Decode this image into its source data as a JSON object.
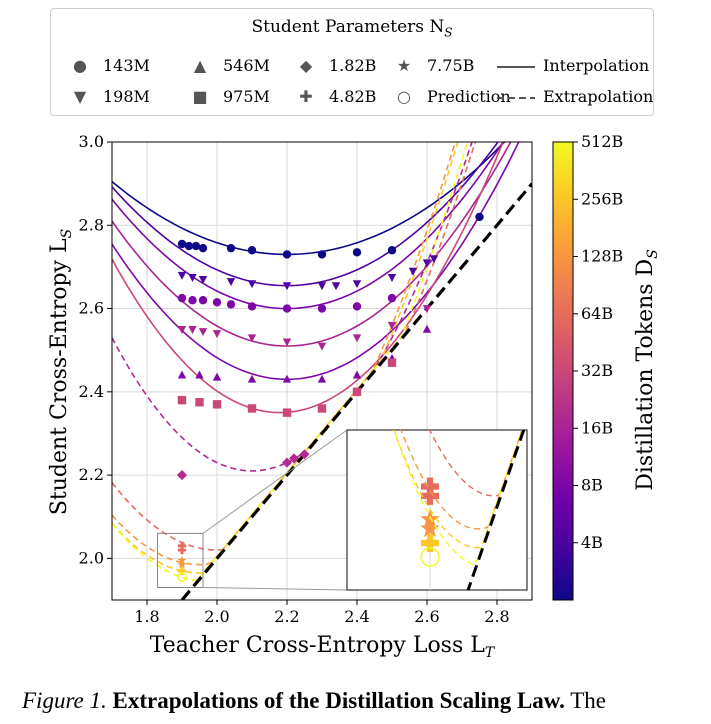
{
  "legend": {
    "title": "Student Parameters N",
    "title_sub": "S",
    "items": [
      {
        "symbol": "●",
        "label": "143M",
        "name": "marker-circle-icon"
      },
      {
        "symbol": "▲",
        "label": "546M",
        "name": "marker-triangle-up-icon"
      },
      {
        "symbol": "◆",
        "label": "1.82B",
        "name": "marker-diamond-icon"
      },
      {
        "symbol": "★",
        "label": "7.75B",
        "name": "marker-star-icon"
      },
      {
        "symbol": "▼",
        "label": "198M",
        "name": "marker-triangle-down-icon"
      },
      {
        "symbol": "■",
        "label": "975M",
        "name": "marker-square-icon"
      },
      {
        "symbol": "✚",
        "label": "4.82B",
        "name": "marker-plus-icon"
      },
      {
        "symbol": "○",
        "label": "Prediction",
        "name": "marker-open-circle-icon"
      }
    ],
    "line_items": [
      {
        "style": "solid",
        "label": "Interpolation"
      },
      {
        "style": "dashed",
        "label": "Extrapolation"
      }
    ]
  },
  "caption": {
    "label": "Figure 1.",
    "bold": "Extrapolations of the Distillation Scaling Law.",
    "rest": "The"
  },
  "colors": {
    "cmap": [
      "#0d0887",
      "#46039f",
      "#7201a8",
      "#9c179e",
      "#bd3786",
      "#d8576b",
      "#ed7953",
      "#fb9f3a",
      "#fdca26",
      "#f0f921"
    ],
    "identity_line": "#000000",
    "grid": "#d9d9d9"
  },
  "chart_data": {
    "type": "scatter",
    "title": "",
    "xlabel": "Teacher Cross-Entropy Loss L",
    "xlabel_sub": "T",
    "ylabel": "Student Cross-Entropy L",
    "ylabel_sub": "S",
    "xlim": [
      1.7,
      2.9
    ],
    "ylim": [
      1.9,
      3.0
    ],
    "xticks": [
      1.8,
      2.0,
      2.2,
      2.4,
      2.6,
      2.8
    ],
    "xtick_labels": [
      "1.8",
      "2.0",
      "2.2",
      "2.4",
      "2.6",
      "2.8"
    ],
    "yticks": [
      2.0,
      2.2,
      2.4,
      2.6,
      2.8,
      3.0
    ],
    "ytick_labels": [
      "2.0",
      "2.2",
      "2.4",
      "2.6",
      "2.8",
      "3.0"
    ],
    "grid": true,
    "identity_line": {
      "from": 1.9,
      "to": 2.9,
      "style": "dashed"
    },
    "colorbar": {
      "label": "Distillation Tokens D",
      "label_sub": "S",
      "scale": "log",
      "range": [
        "2B",
        "512B"
      ],
      "ticks": [
        "4B",
        "8B",
        "16B",
        "32B",
        "64B",
        "128B",
        "256B",
        "512B"
      ]
    },
    "series": [
      {
        "name": "143M, D_S≈2B",
        "marker": "circle",
        "c": 0.0,
        "fit": "interpolation",
        "min_x": 2.2,
        "min_y": 2.73,
        "curv": 0.7,
        "x": [
          1.9,
          1.92,
          1.94,
          1.96,
          2.04,
          2.1,
          2.2,
          2.3,
          2.4,
          2.5,
          2.75
        ],
        "y": [
          2.755,
          2.75,
          2.75,
          2.745,
          2.745,
          2.74,
          2.73,
          2.73,
          2.735,
          2.74,
          2.82
        ]
      },
      {
        "name": "198M, D_S≈4B",
        "marker": "triangle-down",
        "c": 0.13,
        "fit": "interpolation",
        "min_x": 2.2,
        "min_y": 2.655,
        "curv": 0.95,
        "x": [
          1.9,
          1.93,
          1.96,
          2.04,
          2.1,
          2.2,
          2.3,
          2.34,
          2.4,
          2.5,
          2.56,
          2.6,
          2.62
        ],
        "y": [
          2.68,
          2.675,
          2.67,
          2.665,
          2.66,
          2.655,
          2.655,
          2.655,
          2.66,
          2.675,
          2.69,
          2.71,
          2.72
        ]
      },
      {
        "name": "143M, D_S≈8B",
        "marker": "circle",
        "c": 0.25,
        "fit": "interpolation",
        "min_x": 2.2,
        "min_y": 2.6,
        "curv": 1.05,
        "x": [
          1.9,
          1.93,
          1.96,
          2.0,
          2.04,
          2.1,
          2.2,
          2.3,
          2.4,
          2.5
        ],
        "y": [
          2.625,
          2.62,
          2.62,
          2.615,
          2.61,
          2.605,
          2.6,
          2.6,
          2.605,
          2.625
        ]
      },
      {
        "name": "198M, D_S≈16B",
        "marker": "triangle-down",
        "c": 0.38,
        "fit": "interpolation",
        "min_x": 2.2,
        "min_y": 2.51,
        "curv": 1.2,
        "x": [
          1.9,
          1.93,
          1.96,
          2.0,
          2.1,
          2.2,
          2.3,
          2.4,
          2.5,
          2.6
        ],
        "y": [
          2.55,
          2.55,
          2.545,
          2.54,
          2.53,
          2.52,
          2.51,
          2.53,
          2.56,
          2.6
        ]
      },
      {
        "name": "546M, D_S≈8B",
        "marker": "triangle-up",
        "c": 0.26,
        "fit": "interpolation",
        "min_x": 2.2,
        "min_y": 2.43,
        "curv": 1.3,
        "x": [
          1.9,
          1.95,
          2.0,
          2.1,
          2.2,
          2.3,
          2.4,
          2.5,
          2.6
        ],
        "y": [
          2.44,
          2.44,
          2.435,
          2.43,
          2.43,
          2.43,
          2.44,
          2.48,
          2.55
        ]
      },
      {
        "name": "975M, D_S≈32B",
        "marker": "square",
        "c": 0.5,
        "fit": "interpolation",
        "min_x": 2.18,
        "min_y": 2.35,
        "curv": 1.6,
        "x": [
          1.9,
          1.95,
          2.0,
          2.1,
          2.2,
          2.3,
          2.4,
          2.5
        ],
        "y": [
          2.38,
          2.375,
          2.37,
          2.36,
          2.35,
          2.36,
          2.4,
          2.47
        ]
      },
      {
        "name": "1.82B, D_S≈16B",
        "marker": "diamond",
        "c": 0.4,
        "fit": "extrapolation",
        "min_x": 2.1,
        "min_y": 2.21,
        "curv": 2.0,
        "x": [
          1.9,
          2.2,
          2.22,
          2.25
        ],
        "y": [
          2.2,
          2.23,
          2.24,
          2.25
        ]
      },
      {
        "name": "4.82B, D_S≈64B",
        "marker": "plus",
        "c": 0.62,
        "fit": "extrapolation",
        "min_x": 2.0,
        "min_y": 2.02,
        "curv": 1.8,
        "x": [
          1.9,
          1.9
        ],
        "y": [
          2.03,
          2.02
        ]
      },
      {
        "name": "7.75B, D_S≈128B",
        "marker": "star",
        "c": 0.75,
        "fit": "extrapolation",
        "min_x": 1.95,
        "min_y": 1.985,
        "curv": 1.9,
        "x": [
          1.9,
          1.9
        ],
        "y": [
          1.995,
          1.985
        ]
      },
      {
        "name": "4.82B, D_S≈256B",
        "marker": "plus",
        "c": 0.88,
        "fit": "extrapolation",
        "min_x": 1.95,
        "min_y": 1.965,
        "curv": 1.9,
        "x": [
          1.9
        ],
        "y": [
          1.97
        ]
      },
      {
        "name": "7.75B, D_S≈512B",
        "marker": "open-circle",
        "c": 1.0,
        "fit": "extrapolation",
        "min_x": 1.97,
        "min_y": 1.945,
        "curv": 1.9,
        "x": [
          1.9
        ],
        "y": [
          1.955
        ]
      }
    ],
    "inset": {
      "source_xlim": [
        1.83,
        1.96
      ],
      "source_ylim": [
        1.93,
        2.06
      ]
    }
  }
}
